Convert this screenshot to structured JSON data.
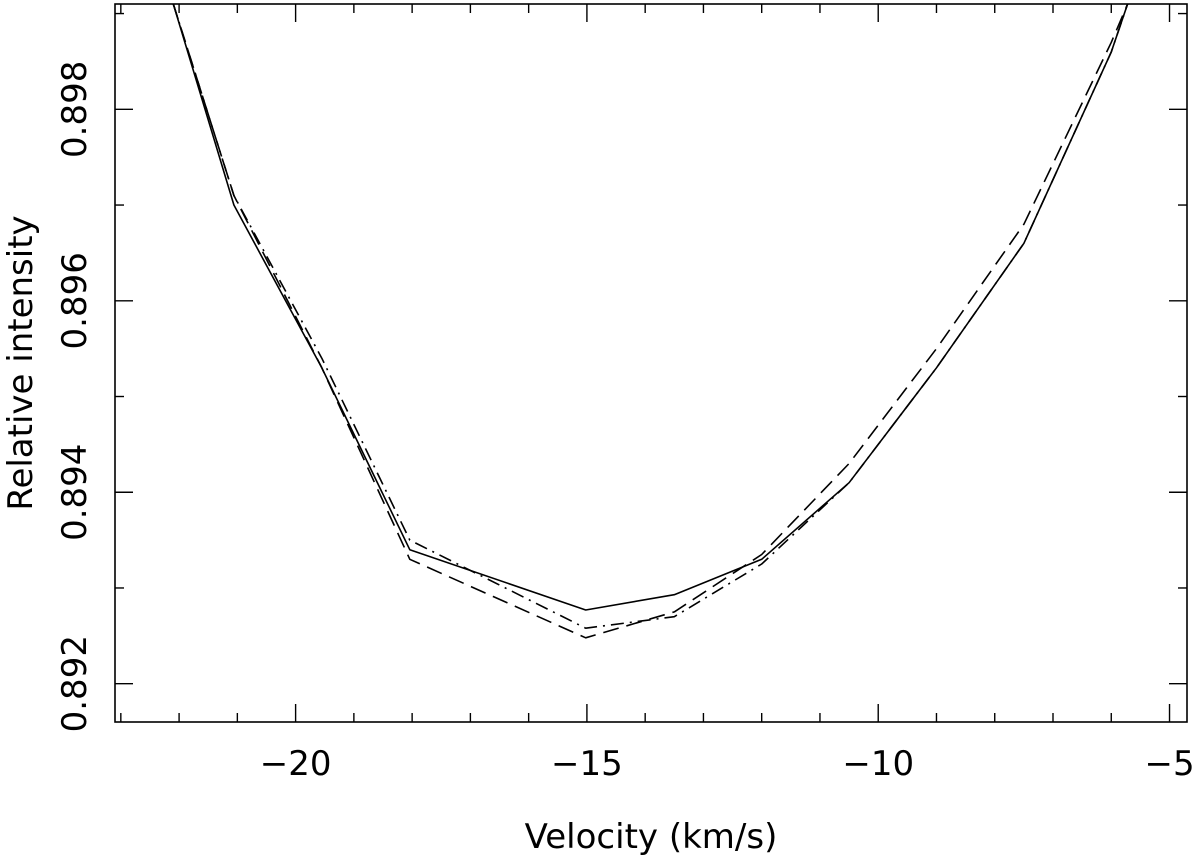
{
  "chart_data": {
    "type": "line",
    "title": "",
    "xlabel": "Velocity (km/s)",
    "ylabel": "Relative intensity",
    "xlim": [
      -23.1,
      -4.7
    ],
    "ylim": [
      0.8916,
      0.8991
    ],
    "x_ticks_major": [
      -20,
      -15,
      -10,
      -5
    ],
    "x_tick_labels": [
      "−20",
      "−15",
      "−10",
      "−5"
    ],
    "y_ticks_major": [
      0.892,
      0.894,
      0.896,
      0.898
    ],
    "y_tick_labels": [
      "0.892",
      "0.894",
      "0.896",
      "0.898"
    ],
    "grid": false,
    "legend": "none",
    "series": [
      {
        "style": "solid",
        "x": [
          -22.1,
          -21.06,
          -19.55,
          -18.04,
          -15.02,
          -13.5,
          -12.0,
          -10.5,
          -9.0,
          -7.5,
          -6.0,
          -5.72
        ],
        "y": [
          0.8991,
          0.897,
          0.8953,
          0.8934,
          0.89277,
          0.89293,
          0.8933,
          0.8941,
          0.8953,
          0.8966,
          0.8986,
          0.8991
        ]
      },
      {
        "style": "dashed",
        "x": [
          -22.1,
          -21.06,
          -19.55,
          -18.04,
          -15.02,
          -13.5,
          -12.0,
          -10.5,
          -9.0,
          -7.5,
          -6.0,
          -5.72
        ],
        "y": [
          0.8991,
          0.8971,
          0.8953,
          0.8933,
          0.89248,
          0.89275,
          0.89335,
          0.8943,
          0.8955,
          0.8968,
          0.8987,
          0.8991
        ]
      },
      {
        "style": "dash-dot",
        "x": [
          -22.1,
          -21.06,
          -19.55,
          -18.04,
          -15.02,
          -13.5,
          -12.0,
          -10.5,
          -9.0,
          -7.5,
          -6.0,
          -5.72
        ],
        "y": [
          0.8991,
          0.8971,
          0.8954,
          0.8935,
          0.89258,
          0.8927,
          0.89325,
          0.8941,
          0.8953,
          0.8966,
          0.8986,
          0.8991
        ]
      }
    ]
  }
}
